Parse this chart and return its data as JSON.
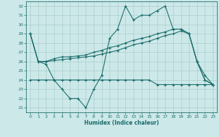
{
  "title": "",
  "xlabel": "Humidex (Indice chaleur)",
  "ylabel": "",
  "bg_color": "#cce8e8",
  "grid_color": "#aacccc",
  "line_color": "#1a6b6b",
  "xlim": [
    -0.5,
    23.5
  ],
  "ylim": [
    20.5,
    32.5
  ],
  "yticks": [
    21,
    22,
    23,
    24,
    25,
    26,
    27,
    28,
    29,
    30,
    31,
    32
  ],
  "xticks": [
    0,
    1,
    2,
    3,
    4,
    5,
    6,
    7,
    8,
    9,
    10,
    11,
    12,
    13,
    14,
    15,
    16,
    17,
    18,
    19,
    20,
    21,
    22,
    23
  ],
  "series": [
    [
      29,
      26,
      25.7,
      24,
      23,
      22,
      22,
      21,
      23,
      24.5,
      28.5,
      29.5,
      32,
      30.5,
      31,
      31,
      31.5,
      32,
      29.5,
      29.5,
      29,
      26,
      24.5,
      23.5
    ],
    [
      29,
      26,
      26,
      26.3,
      26.5,
      26.5,
      26.6,
      26.7,
      27,
      27.2,
      27.5,
      27.7,
      28,
      28.3,
      28.5,
      28.7,
      29,
      29.2,
      29.5,
      29.5,
      29,
      26,
      24,
      23.5
    ],
    [
      29,
      26,
      26,
      26.1,
      26.2,
      26.3,
      26.4,
      26.5,
      26.6,
      26.8,
      27,
      27.2,
      27.5,
      27.8,
      28,
      28.2,
      28.5,
      28.8,
      29,
      29.3,
      29,
      26,
      24,
      23.5
    ],
    [
      24,
      24,
      24,
      24,
      24,
      24,
      24,
      24,
      24,
      24,
      24,
      24,
      24,
      24,
      24,
      24,
      23.5,
      23.5,
      23.5,
      23.5,
      23.5,
      23.5,
      23.5,
      23.5
    ]
  ]
}
